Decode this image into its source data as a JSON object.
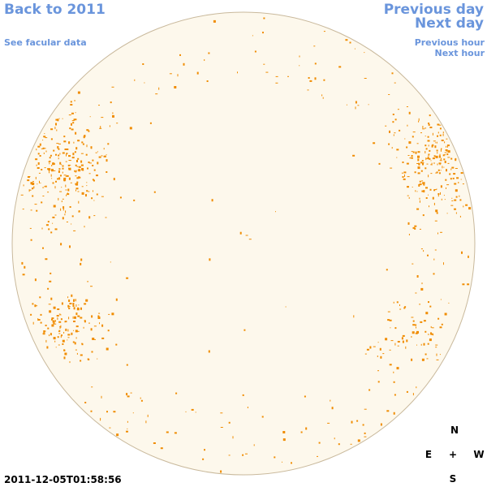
{
  "navigation": {
    "back": "Back to 2011",
    "facular_data": "See facular data",
    "previous_day": "Previous day",
    "next_day": "Next day",
    "previous_hour": "Previous hour",
    "next_hour": "Next hour"
  },
  "timestamp": "2011-12-05T01:58:56",
  "compass": {
    "north": "N",
    "east": "E",
    "center": "+",
    "west": "W",
    "south": "S"
  }
}
